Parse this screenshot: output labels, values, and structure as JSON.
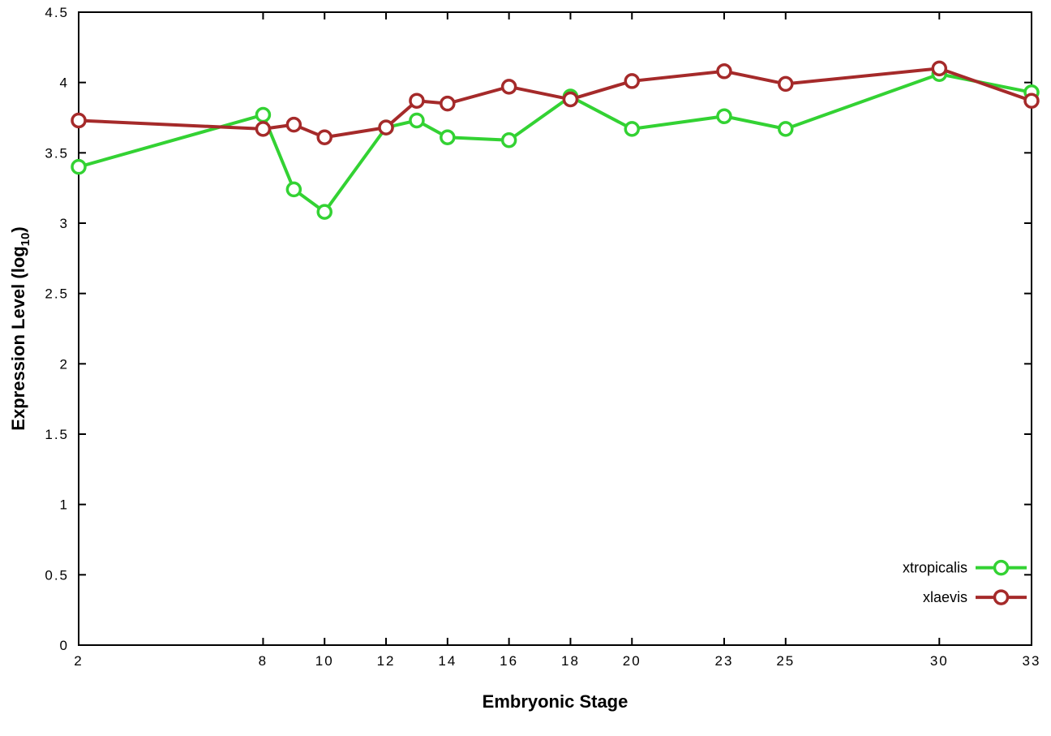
{
  "chart_data": {
    "type": "line",
    "title": "",
    "xlabel": "Embryonic Stage",
    "ylabel": "Expression Level (log10)",
    "ylabel_main": "Expression Level (log",
    "ylabel_sub": "10",
    "ylabel_close": ")",
    "xlim": [
      2,
      33
    ],
    "ylim": [
      0,
      4.5
    ],
    "x_ticks": [
      2,
      8,
      10,
      12,
      14,
      16,
      18,
      20,
      23,
      25,
      30,
      33
    ],
    "y_ticks": [
      0,
      0.5,
      1,
      1.5,
      2,
      2.5,
      3,
      3.5,
      4,
      4.5
    ],
    "grid": false,
    "legend_position": "bottom-right-inside",
    "x": [
      2,
      8,
      9,
      10,
      12,
      13,
      14,
      16,
      18,
      20,
      23,
      25,
      30,
      33
    ],
    "series": [
      {
        "name": "xtropicalis",
        "color": "#33d233",
        "values": [
          3.4,
          3.77,
          3.24,
          3.08,
          3.68,
          3.73,
          3.61,
          3.59,
          3.9,
          3.67,
          3.76,
          3.67,
          4.06,
          3.93
        ]
      },
      {
        "name": "xlaevis",
        "color": "#a52a2a",
        "values": [
          3.73,
          3.67,
          3.7,
          3.61,
          3.68,
          3.87,
          3.85,
          3.97,
          3.88,
          4.01,
          4.08,
          3.99,
          4.1,
          3.87
        ]
      }
    ],
    "style": {
      "border_color": "#000000",
      "line_width": 4,
      "marker_radius": 8,
      "marker_stroke": 3.5,
      "tick_len": 9
    }
  }
}
